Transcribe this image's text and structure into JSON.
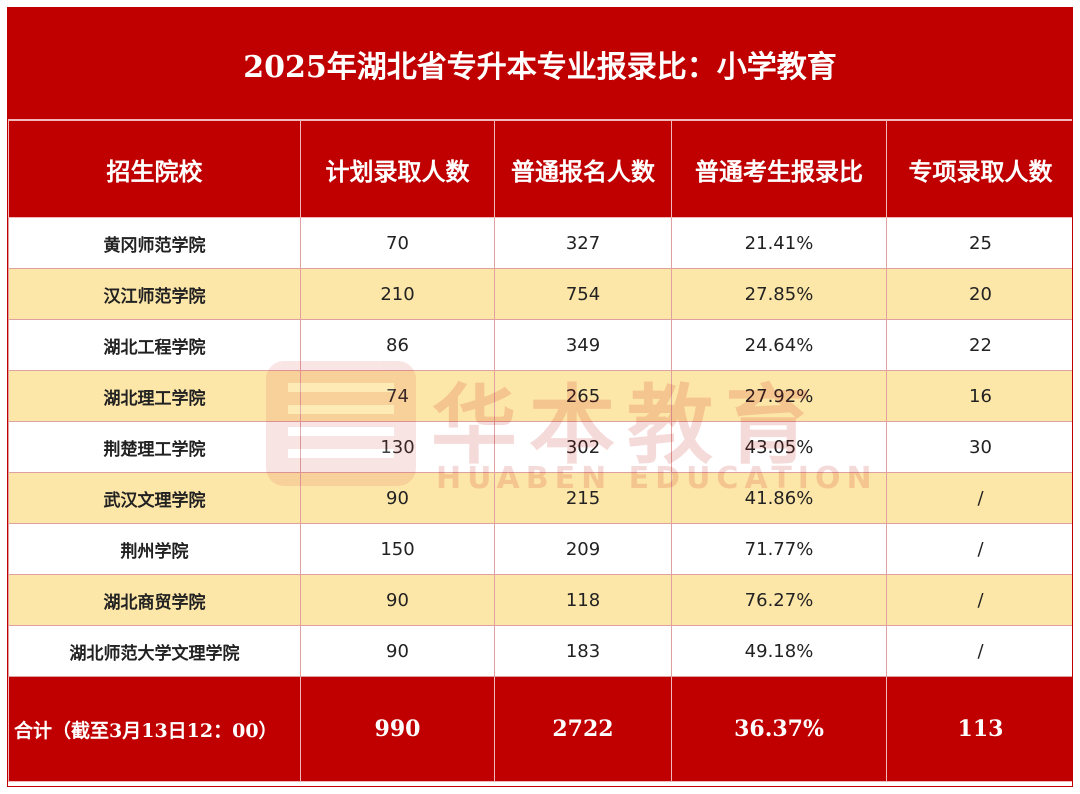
{
  "title": "2025年湖北省专升本专业报录比：小学教育",
  "colors": {
    "header_bg": "#c00000",
    "stripe": "#fde7a8",
    "text_on_header": "#ffffff"
  },
  "columns": [
    "招生院校",
    "计划录取人数",
    "普通报名人数",
    "普通考生报录比",
    "专项录取人数"
  ],
  "rows": [
    [
      "黄冈师范学院",
      "70",
      "327",
      "21.41%",
      "25"
    ],
    [
      "汉江师范学院",
      "210",
      "754",
      "27.85%",
      "20"
    ],
    [
      "湖北工程学院",
      "86",
      "349",
      "24.64%",
      "22"
    ],
    [
      "湖北理工学院",
      "74",
      "265",
      "27.92%",
      "16"
    ],
    [
      "荆楚理工学院",
      "130",
      "302",
      "43.05%",
      "30"
    ],
    [
      "武汉文理学院",
      "90",
      "215",
      "41.86%",
      "/"
    ],
    [
      "荆州学院",
      "150",
      "209",
      "71.77%",
      "/"
    ],
    [
      "湖北商贸学院",
      "90",
      "118",
      "76.27%",
      "/"
    ],
    [
      "湖北师范大学文理学院",
      "90",
      "183",
      "49.18%",
      "/"
    ]
  ],
  "total": {
    "label": "合计（截至3月13日12：00）",
    "plan": "990",
    "applicants": "2722",
    "ratio": "36.37%",
    "special": "113"
  },
  "watermark": {
    "name": "华本教育",
    "subtitle": "HUABEN EDUCATION",
    "icon": "huaben-logo-icon"
  }
}
